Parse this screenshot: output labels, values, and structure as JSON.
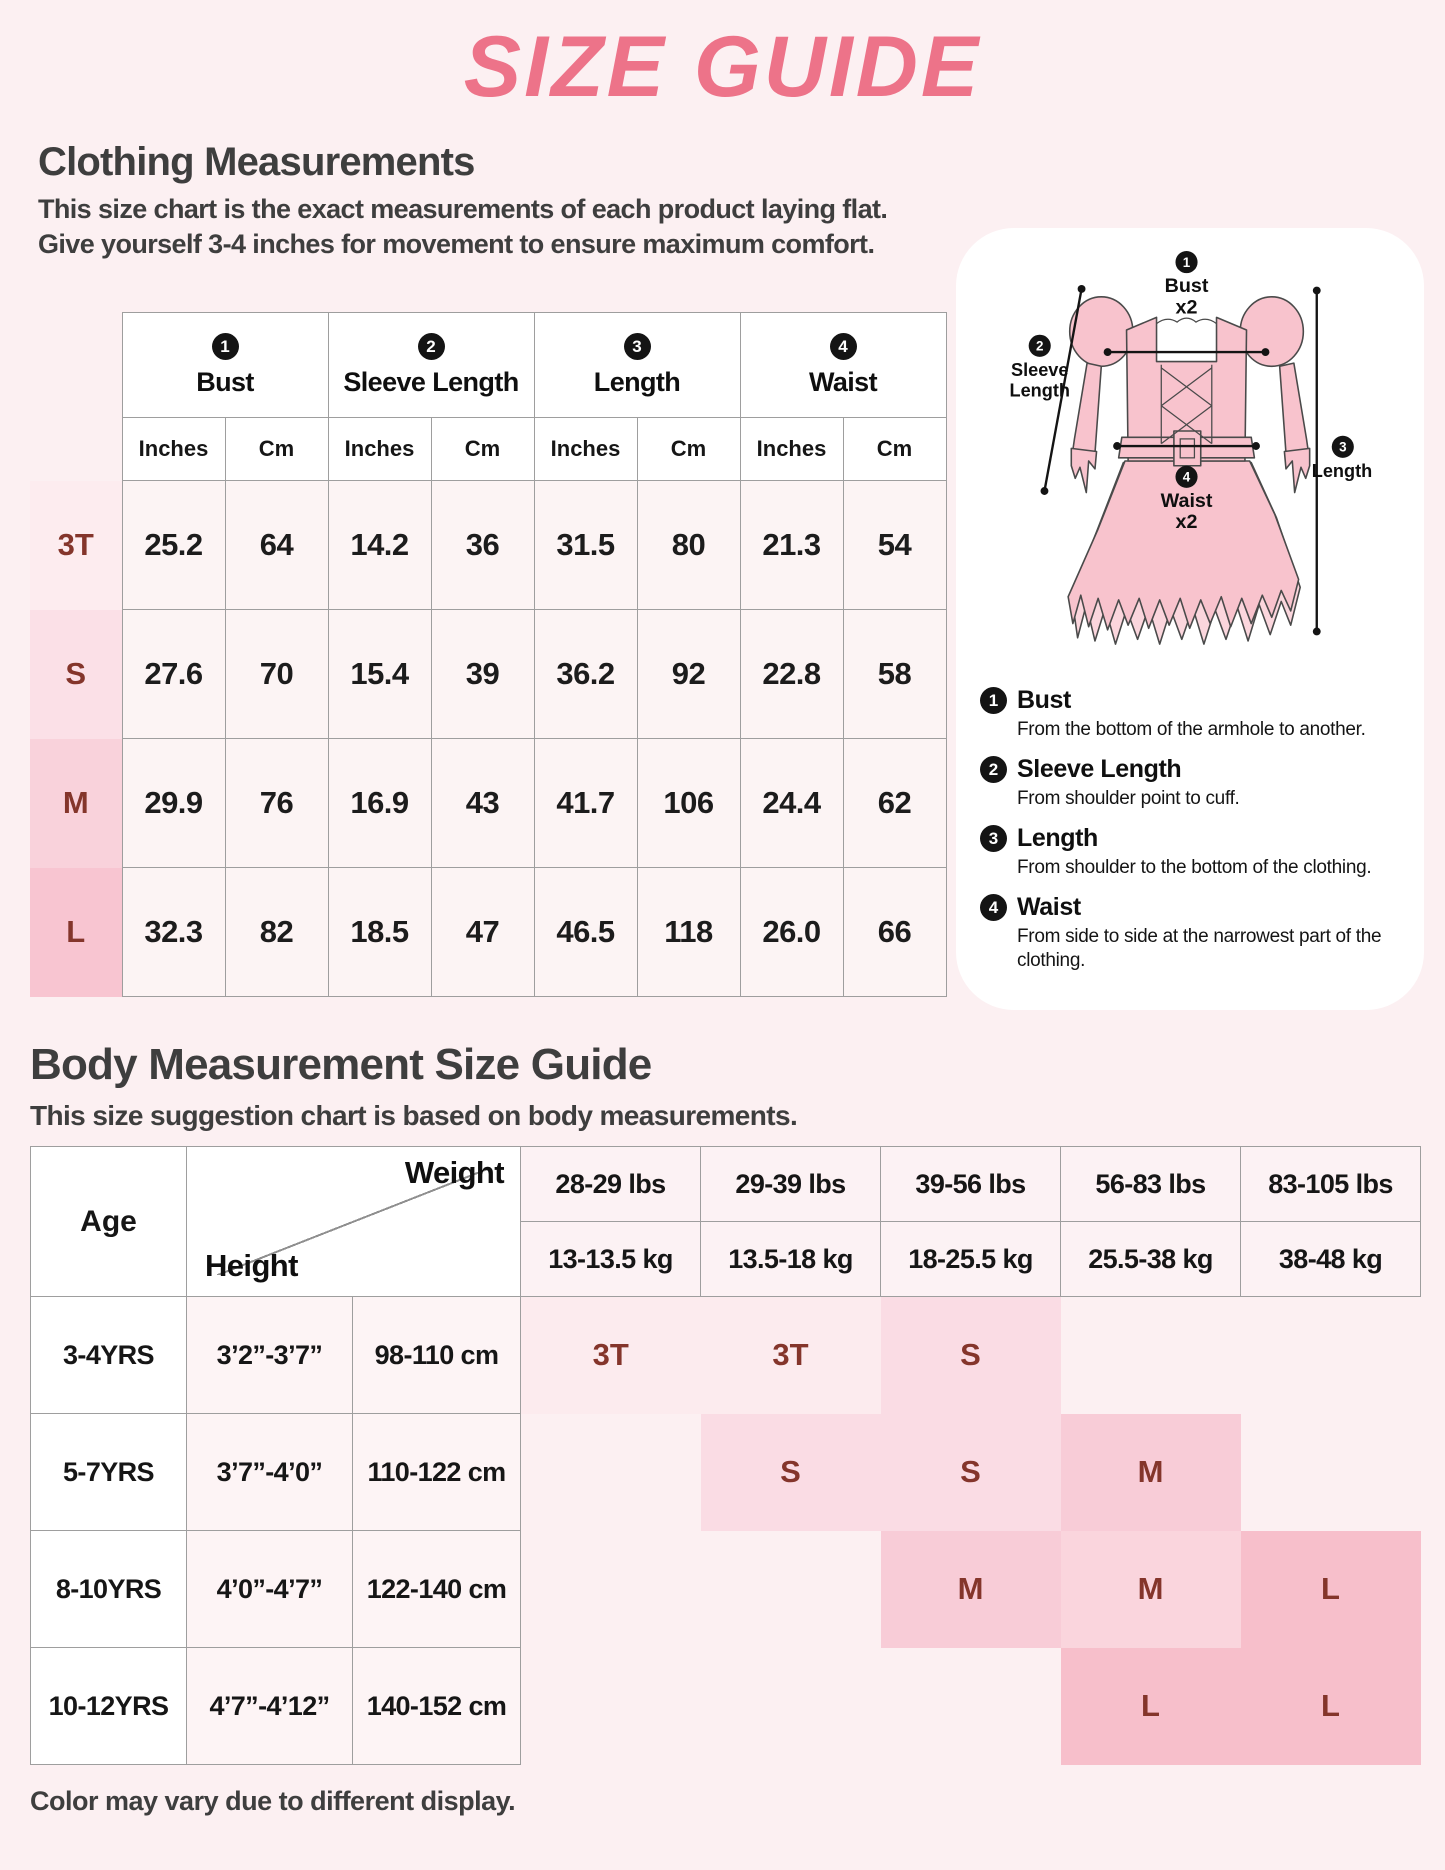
{
  "title": "SIZE GUIDE",
  "clothing": {
    "heading": "Clothing Measurements",
    "desc_line1": "This size chart is the exact measurements of each product laying flat.",
    "desc_line2": "Give yourself 3-4 inches for movement to ensure maximum comfort.",
    "table": {
      "unit_labels": [
        "Inches",
        "Cm"
      ],
      "groups": [
        {
          "num": "1",
          "label": "Bust"
        },
        {
          "num": "2",
          "label": "Sleeve Length"
        },
        {
          "num": "3",
          "label": "Length"
        },
        {
          "num": "4",
          "label": "Waist"
        }
      ],
      "rows": [
        {
          "size": "3T",
          "label_bg": "#fdecef",
          "values": [
            "25.2",
            "64",
            "14.2",
            "36",
            "31.5",
            "80",
            "21.3",
            "54"
          ]
        },
        {
          "size": "S",
          "label_bg": "#fbe0e7",
          "values": [
            "27.6",
            "70",
            "15.4",
            "39",
            "36.2",
            "92",
            "22.8",
            "58"
          ]
        },
        {
          "size": "M",
          "label_bg": "#f9d2db",
          "values": [
            "29.9",
            "76",
            "16.9",
            "43",
            "41.7",
            "106",
            "24.4",
            "62"
          ]
        },
        {
          "size": "L",
          "label_bg": "#f8c5d1",
          "values": [
            "32.3",
            "82",
            "18.5",
            "47",
            "46.5",
            "118",
            "26.0",
            "66"
          ]
        }
      ]
    }
  },
  "diagram": {
    "labels": {
      "bust": {
        "num": "1",
        "line1": "Bust",
        "line2": "x2"
      },
      "sleeve": {
        "num": "2",
        "line1": "Sleeve",
        "line2": "Length"
      },
      "length": {
        "num": "3",
        "line1": "Length"
      },
      "waist": {
        "num": "4",
        "line1": "Waist",
        "line2": "x2"
      }
    },
    "legend": [
      {
        "num": "1",
        "title": "Bust",
        "desc": "From the bottom of the armhole to another."
      },
      {
        "num": "2",
        "title": "Sleeve Length",
        "desc": "From shoulder point to cuff."
      },
      {
        "num": "3",
        "title": "Length",
        "desc": "From shoulder to the bottom of the clothing."
      },
      {
        "num": "4",
        "title": "Waist",
        "desc": "From side to side at the narrowest part of the clothing."
      }
    ]
  },
  "body_guide": {
    "heading": "Body Measurement Size Guide",
    "desc": "This size suggestion chart is based on body measurements.",
    "table": {
      "age_label": "Age",
      "weight_label": "Weight",
      "height_label": "Height",
      "weight_columns": [
        {
          "lbs": "28-29 lbs",
          "kg": "13-13.5 kg"
        },
        {
          "lbs": "29-39 lbs",
          "kg": "13.5-18 kg"
        },
        {
          "lbs": "39-56 lbs",
          "kg": "18-25.5 kg"
        },
        {
          "lbs": "56-83 lbs",
          "kg": "25.5-38 kg"
        },
        {
          "lbs": "83-105 lbs",
          "kg": "38-48 kg"
        }
      ],
      "rows": [
        {
          "age": "3-4YRS",
          "height_ft": "3’2”-3’7”",
          "height_cm": "98-110 cm",
          "sizes": [
            {
              "label": "3T",
              "bg": "#fcebee"
            },
            {
              "label": "3T",
              "bg": "#fcebee"
            },
            {
              "label": "S",
              "bg": "#fadce4"
            },
            null,
            null
          ]
        },
        {
          "age": "5-7YRS",
          "height_ft": "3’7”-4’0”",
          "height_cm": "110-122 cm",
          "sizes": [
            null,
            {
              "label": "S",
              "bg": "#fadce4"
            },
            {
              "label": "S",
              "bg": "#fadce4"
            },
            {
              "label": "M",
              "bg": "#f8ccd7"
            },
            null
          ]
        },
        {
          "age": "8-10YRS",
          "height_ft": "4’0”-4’7”",
          "height_cm": "122-140 cm",
          "sizes": [
            null,
            null,
            {
              "label": "M",
              "bg": "#f8ccd7"
            },
            {
              "label": "M",
              "bg": "#fad5dd"
            },
            {
              "label": "L",
              "bg": "#f7bfcb"
            }
          ]
        },
        {
          "age": "10-12YRS",
          "height_ft": "4’7”-4’12”",
          "height_cm": "140-152 cm",
          "sizes": [
            null,
            null,
            null,
            {
              "label": "L",
              "bg": "#f7bfcb"
            },
            {
              "label": "L",
              "bg": "#f7bfcb"
            }
          ]
        }
      ]
    }
  },
  "footer": "Color may vary due to different display.",
  "colors": {
    "page_bg": "#fcf0f2",
    "title_pink": "#ed7389",
    "heading_gray": "#3e3e3e",
    "size_maroon": "#84352b",
    "table_border": "#9e9e9e",
    "data_cell_bg": "#fcf4f4",
    "weight_header_bg": "#fcf2f4",
    "dress_pink": "#f8c3cd",
    "dress_pink_light": "#fbd6dd"
  }
}
